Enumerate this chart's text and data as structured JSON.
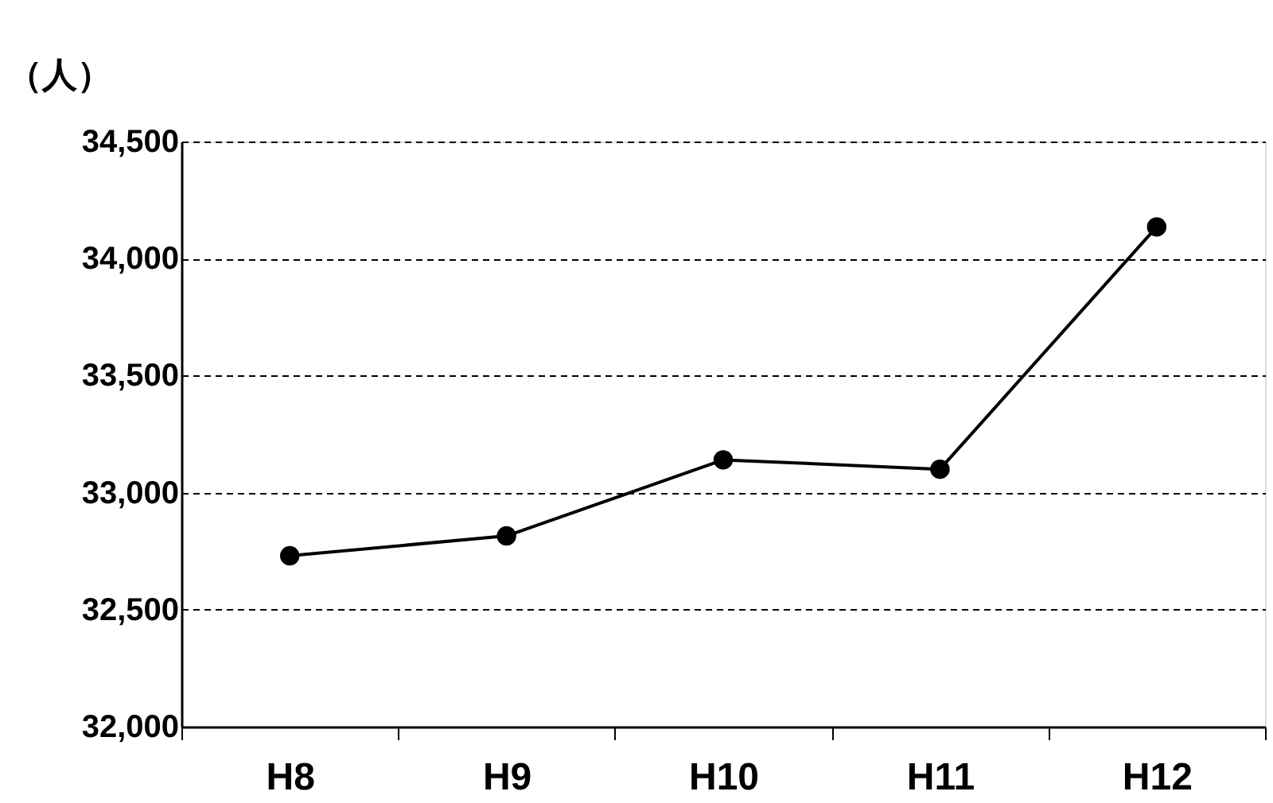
{
  "chart_data": {
    "type": "line",
    "ylabel": "（人）",
    "categories": [
      "H8",
      "H9",
      "H10",
      "H11",
      "H12"
    ],
    "series": [
      {
        "color": "#000000",
        "values": [
          32730,
          32815,
          33140,
          33100,
          34135
        ]
      }
    ],
    "ylim": [
      32000,
      34500
    ],
    "yticks": [
      {
        "value": 32000,
        "label": "32,000"
      },
      {
        "value": 32500,
        "label": "32,500"
      },
      {
        "value": 33000,
        "label": "33,000"
      },
      {
        "value": 33500,
        "label": "33,500"
      },
      {
        "value": 34000,
        "label": "34,000"
      },
      {
        "value": 34500,
        "label": "34,500"
      }
    ],
    "grid": "y",
    "marker": "circle",
    "line_style": "solid",
    "legend": false
  }
}
